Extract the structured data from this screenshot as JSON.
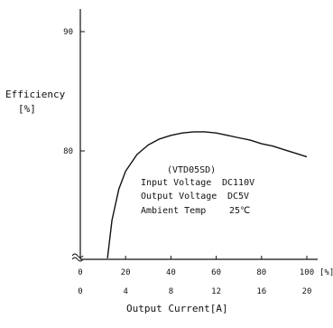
{
  "chart_data": {
    "type": "line",
    "ylabel": "Efficiency",
    "yunit": "[%]",
    "xlabel": "Output Current[A]",
    "x_unit_percent": "[%]",
    "x_percent_ticks": [
      "0",
      "20",
      "40",
      "60",
      "80",
      "100"
    ],
    "x_current_ticks": [
      "0",
      "4",
      "8",
      "12",
      "16",
      "20"
    ],
    "y_ticks": [
      "90",
      "80"
    ],
    "xlim_percent": [
      0,
      100
    ],
    "ylim": [
      71,
      91.5
    ],
    "y_axis_break": true,
    "grid": false,
    "series": [
      {
        "x_percent": [
          12,
          14,
          17,
          20,
          25,
          30,
          35,
          40,
          45,
          50,
          55,
          60,
          65,
          70,
          75,
          80,
          85,
          90,
          95,
          100
        ],
        "values": [
          71,
          74.2,
          76.8,
          78.3,
          79.7,
          80.5,
          81.0,
          81.3,
          81.5,
          81.6,
          81.6,
          81.5,
          81.3,
          81.1,
          80.9,
          80.6,
          80.4,
          80.1,
          79.8,
          79.5
        ]
      }
    ],
    "annotation": {
      "model": "(VTD05SD)",
      "lines": [
        {
          "label": "Input Voltage",
          "value": "DC110V"
        },
        {
          "label": "Output Voltage",
          "value": "DC5V"
        },
        {
          "label": "Ambient Temp",
          "value": "25℃"
        }
      ]
    }
  }
}
